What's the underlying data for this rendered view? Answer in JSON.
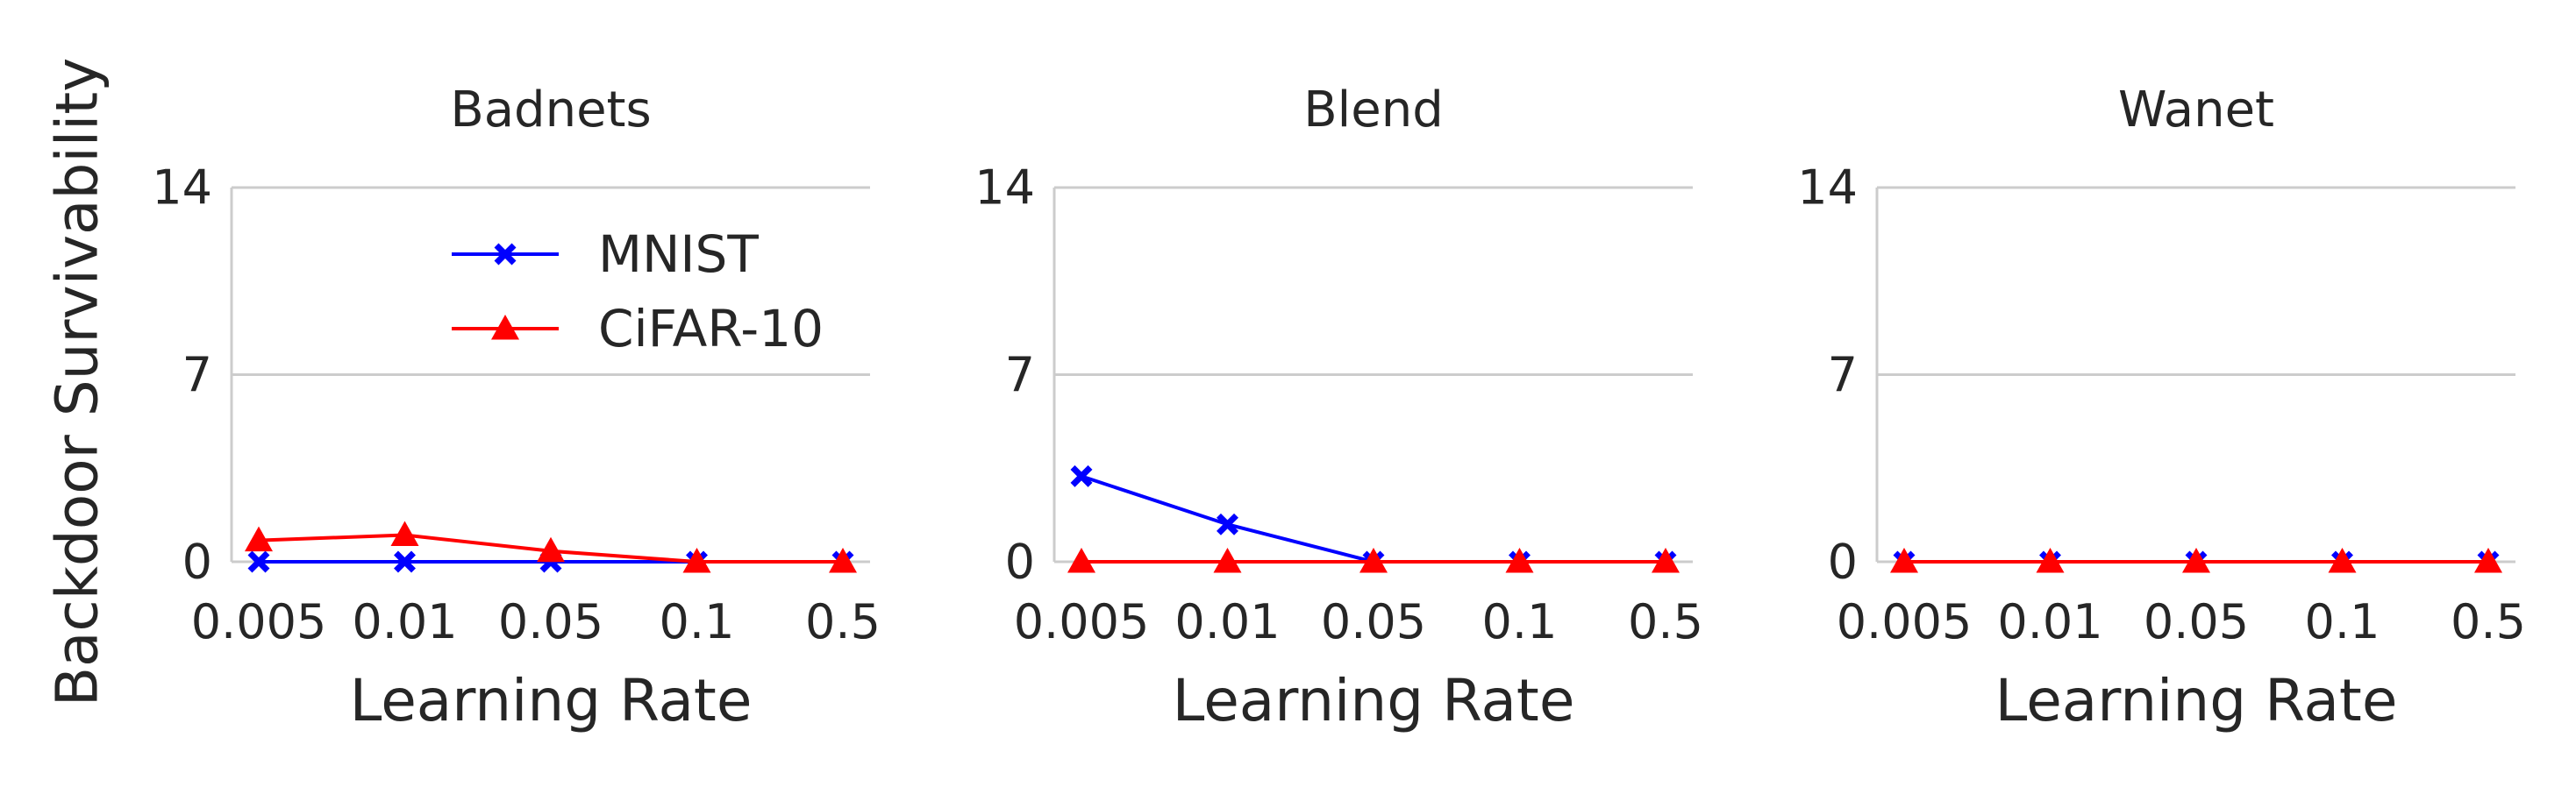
{
  "figure": {
    "ylabel": "Backdoor Survivability",
    "legend": {
      "placement": "top-right of first panel"
    },
    "colors": {
      "MNIST": "#0000ff",
      "CiFAR-10": "#ff0000",
      "grid": "#cccccc"
    }
  },
  "chart_data": [
    {
      "type": "line",
      "title": "Badnets",
      "xlabel": "Learning Rate",
      "ylabel": "Backdoor Survivability",
      "categories": [
        "0.005",
        "0.01",
        "0.05",
        "0.1",
        "0.5"
      ],
      "yticks": [
        "0",
        "7",
        "14"
      ],
      "ylim": [
        0,
        14
      ],
      "grid": "horizontal",
      "series": [
        {
          "name": "MNIST",
          "marker": "x",
          "color": "#0000ff",
          "values": [
            0,
            0,
            0,
            0,
            0
          ]
        },
        {
          "name": "CiFAR-10",
          "marker": "triangle",
          "color": "#ff0000",
          "values": [
            0.8,
            1.0,
            0.4,
            0,
            0
          ]
        }
      ]
    },
    {
      "type": "line",
      "title": "Blend",
      "xlabel": "Learning Rate",
      "categories": [
        "0.005",
        "0.01",
        "0.05",
        "0.1",
        "0.5"
      ],
      "yticks": [
        "0",
        "7",
        "14"
      ],
      "ylim": [
        0,
        14
      ],
      "grid": "horizontal",
      "series": [
        {
          "name": "MNIST",
          "marker": "x",
          "color": "#0000ff",
          "values": [
            3.2,
            1.4,
            0,
            0,
            0
          ]
        },
        {
          "name": "CiFAR-10",
          "marker": "triangle",
          "color": "#ff0000",
          "values": [
            0,
            0,
            0,
            0,
            0
          ]
        }
      ]
    },
    {
      "type": "line",
      "title": "Wanet",
      "xlabel": "Learning Rate",
      "categories": [
        "0.005",
        "0.01",
        "0.05",
        "0.1",
        "0.5"
      ],
      "yticks": [
        "0",
        "7",
        "14"
      ],
      "ylim": [
        0,
        14
      ],
      "grid": "horizontal",
      "series": [
        {
          "name": "MNIST",
          "marker": "x",
          "color": "#0000ff",
          "values": [
            0,
            0,
            0,
            0,
            0
          ]
        },
        {
          "name": "CiFAR-10",
          "marker": "triangle",
          "color": "#ff0000",
          "values": [
            0,
            0,
            0,
            0,
            0
          ]
        }
      ]
    }
  ]
}
